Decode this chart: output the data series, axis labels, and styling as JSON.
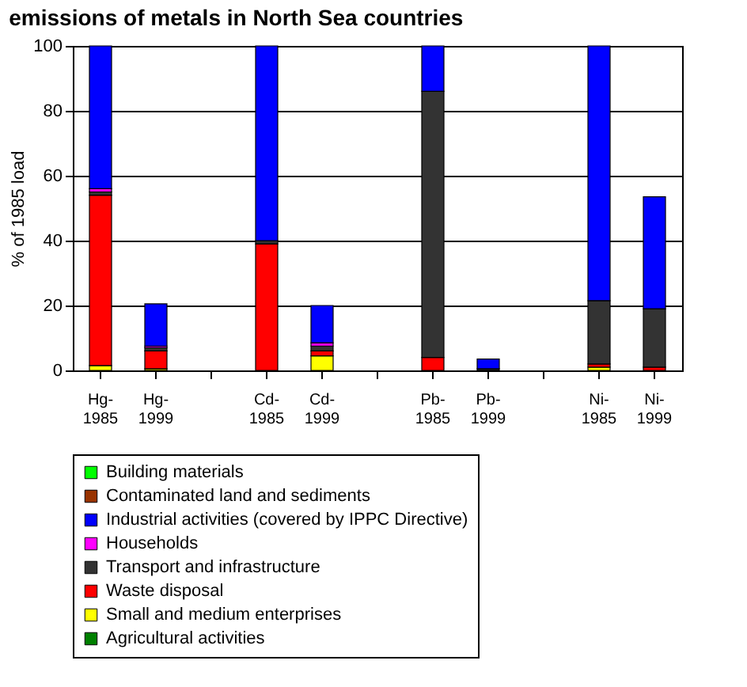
{
  "chart_data": {
    "type": "bar",
    "title": "emissions of metals in North Sea countries",
    "ylabel": "% of 1985 load",
    "categories": [
      "Hg-1985",
      "Hg-1999",
      null,
      "Cd-1985",
      "Cd-1999",
      null,
      "Pb-1985",
      "Pb-1999",
      null,
      "Ni-1985",
      "Ni-1999"
    ],
    "stacked": true,
    "ylim": [
      0,
      100
    ],
    "yticks": [
      0,
      20,
      40,
      60,
      80,
      100
    ],
    "grid": "y",
    "legend": "bottom",
    "series": [
      {
        "name": "Agricultural activities",
        "color": "#008000",
        "values": [
          0,
          0,
          null,
          0,
          0,
          null,
          0,
          0,
          null,
          0,
          0
        ]
      },
      {
        "name": "Small and medium enterprises",
        "color": "#ffff00",
        "values": [
          1.5,
          0.5,
          null,
          0,
          4.5,
          null,
          0,
          0,
          null,
          1,
          0
        ]
      },
      {
        "name": "Waste disposal",
        "color": "#ff0000",
        "values": [
          52.5,
          5.5,
          null,
          39,
          1.5,
          null,
          4,
          0,
          null,
          1,
          1
        ]
      },
      {
        "name": "Transport and infrastructure",
        "color": "#333333",
        "values": [
          1,
          1,
          null,
          1,
          1.5,
          null,
          82,
          0.5,
          null,
          19.5,
          18
        ]
      },
      {
        "name": "Households",
        "color": "#ff00ff",
        "values": [
          1,
          0.5,
          null,
          0,
          1,
          null,
          0,
          0,
          null,
          0,
          0
        ]
      },
      {
        "name": "Industrial activities (covered by IPPC Directive)",
        "color": "#0000ff",
        "values": [
          44,
          13,
          null,
          60,
          11.5,
          null,
          14,
          3,
          null,
          78.5,
          34.5
        ]
      },
      {
        "name": "Contaminated land and sediments",
        "color": "#993300",
        "values": [
          0,
          0,
          null,
          0,
          0,
          null,
          0,
          0,
          null,
          0,
          0
        ]
      },
      {
        "name": "Building materials",
        "color": "#00ff00",
        "values": [
          0,
          0,
          null,
          0,
          0,
          null,
          0,
          0,
          null,
          0,
          0
        ]
      }
    ]
  }
}
